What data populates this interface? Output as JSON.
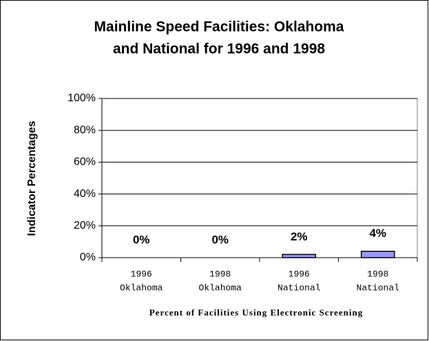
{
  "chart_data": {
    "type": "bar",
    "title": [
      "Mainline Speed Facilities: Oklahoma",
      "and National for 1996 and 1998"
    ],
    "y_label": "Indicator Percentages",
    "x_label": "Percent of Facilities Using Electronic Screening",
    "categories": [
      [
        "1996",
        "Oklahoma"
      ],
      [
        "1998",
        "Oklahoma"
      ],
      [
        "1996",
        "National"
      ],
      [
        "1998",
        "National"
      ]
    ],
    "values": [
      0,
      0,
      2,
      4
    ],
    "value_labels": [
      "0%",
      "0%",
      "2%",
      "4%"
    ],
    "color": "#9999ff",
    "ylim": [
      0,
      100
    ],
    "yticks": [
      {
        "value": 0,
        "label": "0%"
      },
      {
        "value": 20,
        "label": "20%"
      },
      {
        "value": 40,
        "label": "40%"
      },
      {
        "value": 60,
        "label": "60%"
      },
      {
        "value": 80,
        "label": "80%"
      },
      {
        "value": 100,
        "label": "100%"
      }
    ],
    "grid": true
  }
}
